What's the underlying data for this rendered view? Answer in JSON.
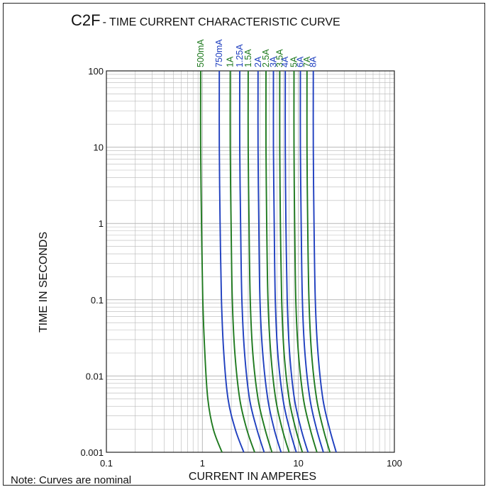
{
  "chart_data": {
    "type": "line",
    "title": "C2F",
    "subtitle": "- TIME CURRENT CHARACTERISTIC CURVE",
    "xlabel": "CURRENT IN AMPERES",
    "ylabel": "TIME IN SECONDS",
    "xscale": "log",
    "yscale": "log",
    "xlim": [
      0.1,
      100
    ],
    "ylim": [
      0.001,
      100
    ],
    "x_ticks": [
      "0.1",
      "1",
      "10",
      "100"
    ],
    "y_ticks": [
      "0.001",
      "0.01",
      "0.1",
      "1",
      "10",
      "100"
    ],
    "grid": true,
    "legend": "curve labels along top",
    "note": "Note: Curves are nominal",
    "colors": {
      "green": "#1f7a1f",
      "blue": "#1f3fbf",
      "grid": "#b8b8b8",
      "axis": "#222222"
    },
    "series": [
      {
        "name": "500mA",
        "color": "green",
        "x": [
          0.96,
          0.96,
          0.98,
          1.01,
          1.06,
          1.14,
          1.3,
          1.6
        ],
        "y": [
          100,
          10,
          1,
          0.1,
          0.02,
          0.005,
          0.002,
          0.001
        ]
      },
      {
        "name": "750mA",
        "color": "blue",
        "x": [
          1.5,
          1.5,
          1.53,
          1.58,
          1.67,
          1.85,
          2.2,
          2.7
        ],
        "y": [
          100,
          10,
          1,
          0.1,
          0.02,
          0.005,
          0.002,
          0.001
        ]
      },
      {
        "name": "1A",
        "color": "green",
        "x": [
          1.95,
          1.95,
          1.99,
          2.05,
          2.18,
          2.45,
          2.9,
          3.5
        ],
        "y": [
          100,
          10,
          1,
          0.1,
          0.02,
          0.005,
          0.002,
          0.001
        ]
      },
      {
        "name": "1.25A",
        "color": "blue",
        "x": [
          2.45,
          2.45,
          2.5,
          2.58,
          2.75,
          3.1,
          3.7,
          4.4
        ],
        "y": [
          100,
          10,
          1,
          0.1,
          0.02,
          0.005,
          0.002,
          0.001
        ]
      },
      {
        "name": "1.5A",
        "color": "green",
        "x": [
          3.0,
          3.0,
          3.06,
          3.15,
          3.35,
          3.8,
          4.5,
          5.3
        ],
        "y": [
          100,
          10,
          1,
          0.1,
          0.02,
          0.005,
          0.002,
          0.001
        ]
      },
      {
        "name": "2A",
        "color": "blue",
        "x": [
          3.8,
          3.8,
          3.87,
          3.98,
          4.25,
          4.8,
          5.6,
          6.6
        ],
        "y": [
          100,
          10,
          1,
          0.1,
          0.02,
          0.005,
          0.002,
          0.001
        ]
      },
      {
        "name": "2.5A",
        "color": "green",
        "x": [
          4.6,
          4.6,
          4.68,
          4.82,
          5.15,
          5.8,
          6.8,
          8.0
        ],
        "y": [
          100,
          10,
          1,
          0.1,
          0.02,
          0.005,
          0.002,
          0.001
        ]
      },
      {
        "name": "3A",
        "color": "blue",
        "x": [
          5.5,
          5.5,
          5.6,
          5.75,
          6.1,
          6.9,
          8.1,
          9.5
        ],
        "y": [
          100,
          10,
          1,
          0.1,
          0.02,
          0.005,
          0.002,
          0.001
        ]
      },
      {
        "name": "3.5A",
        "color": "green",
        "x": [
          6.4,
          6.4,
          6.5,
          6.7,
          7.1,
          8.0,
          9.4,
          11.0
        ],
        "y": [
          100,
          10,
          1,
          0.1,
          0.02,
          0.005,
          0.002,
          0.001
        ]
      },
      {
        "name": "4A",
        "color": "blue",
        "x": [
          7.3,
          7.3,
          7.42,
          7.65,
          8.1,
          9.1,
          10.7,
          12.6
        ],
        "y": [
          100,
          10,
          1,
          0.1,
          0.02,
          0.005,
          0.002,
          0.001
        ]
      },
      {
        "name": "5A",
        "color": "green",
        "x": [
          9.0,
          9.0,
          9.15,
          9.4,
          10.0,
          11.3,
          13.3,
          15.6
        ],
        "y": [
          100,
          10,
          1,
          0.1,
          0.02,
          0.005,
          0.002,
          0.001
        ]
      },
      {
        "name": "6A",
        "color": "blue",
        "x": [
          10.5,
          10.5,
          10.7,
          11.0,
          11.7,
          13.2,
          15.5,
          18.2
        ],
        "y": [
          100,
          10,
          1,
          0.1,
          0.02,
          0.005,
          0.002,
          0.001
        ]
      },
      {
        "name": "7A",
        "color": "green",
        "x": [
          12.3,
          12.3,
          12.5,
          12.9,
          13.7,
          15.5,
          18.2,
          21.3
        ],
        "y": [
          100,
          10,
          1,
          0.1,
          0.02,
          0.005,
          0.002,
          0.001
        ]
      },
      {
        "name": "8A",
        "color": "blue",
        "x": [
          14.3,
          14.3,
          14.55,
          15.0,
          16.0,
          18.0,
          21.2,
          24.8
        ],
        "y": [
          100,
          10,
          1,
          0.1,
          0.02,
          0.005,
          0.002,
          0.001
        ]
      }
    ]
  }
}
